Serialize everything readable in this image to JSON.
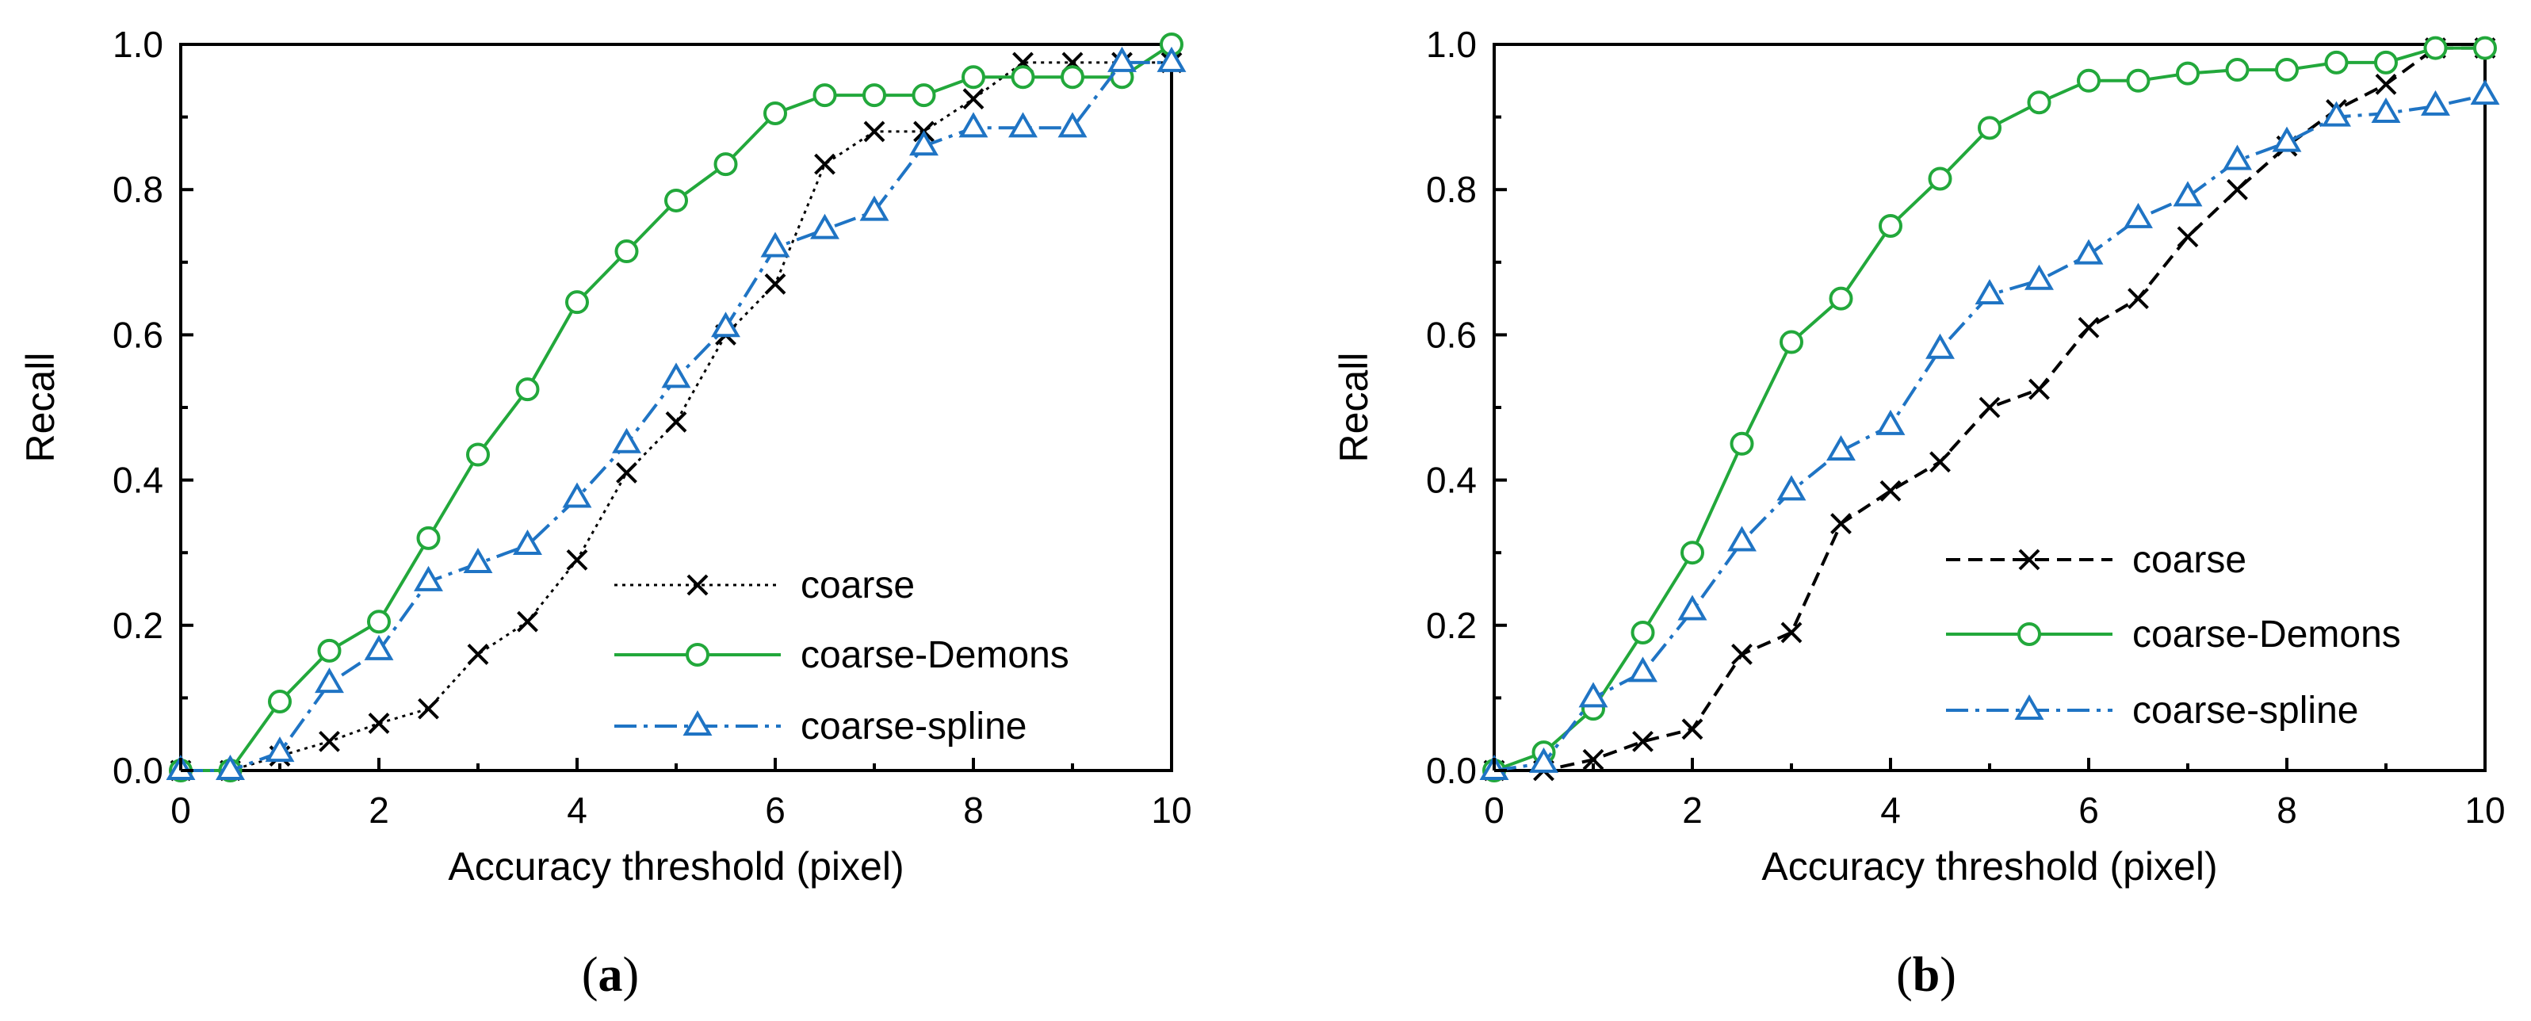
{
  "chart_data": [
    {
      "type": "line",
      "panel_label": "a",
      "xlabel": "Accuracy threshold (pixel)",
      "ylabel": "Recall",
      "xlim": [
        0,
        10
      ],
      "ylim": [
        0,
        1
      ],
      "xticks": [
        "0",
        "2",
        "4",
        "6",
        "8",
        "10"
      ],
      "yticks": [
        "0.0",
        "0.2",
        "0.4",
        "0.6",
        "0.8",
        "1.0"
      ],
      "legend_position": "bottom-right",
      "grid": false,
      "x": [
        0,
        0.5,
        1,
        1.5,
        2,
        2.5,
        3,
        3.5,
        4,
        4.5,
        5,
        5.5,
        6,
        6.5,
        7,
        7.5,
        8,
        8.5,
        9,
        9.5,
        10
      ],
      "series": [
        {
          "name": "coarse",
          "color": "#000000",
          "marker": "x",
          "line_style": "dotted",
          "values": [
            0,
            0,
            0.02,
            0.04,
            0.065,
            0.085,
            0.16,
            0.205,
            0.29,
            0.41,
            0.48,
            0.6,
            0.67,
            0.835,
            0.88,
            0.88,
            0.925,
            0.975,
            0.975,
            0.975,
            0.975
          ]
        },
        {
          "name": "coarse-Demons",
          "color": "#22a83b",
          "marker": "circle",
          "line_style": "solid",
          "values": [
            0,
            0,
            0.095,
            0.165,
            0.205,
            0.32,
            0.435,
            0.525,
            0.645,
            0.715,
            0.785,
            0.835,
            0.905,
            0.93,
            0.93,
            0.93,
            0.955,
            0.955,
            0.955,
            0.955,
            1.0
          ]
        },
        {
          "name": "coarse-spline",
          "color": "#1f74c4",
          "marker": "triangle",
          "line_style": "dashdot",
          "values": [
            0,
            0,
            0.025,
            0.12,
            0.165,
            0.26,
            0.285,
            0.31,
            0.375,
            0.45,
            0.54,
            0.61,
            0.72,
            0.745,
            0.77,
            0.86,
            0.885,
            0.885,
            0.885,
            0.975,
            0.975
          ]
        }
      ]
    },
    {
      "type": "line",
      "panel_label": "b",
      "xlabel": "Accuracy threshold (pixel)",
      "ylabel": "Recall",
      "xlim": [
        0,
        10
      ],
      "ylim": [
        0,
        1
      ],
      "xticks": [
        "0",
        "2",
        "4",
        "6",
        "8",
        "10"
      ],
      "yticks": [
        "0.0",
        "0.2",
        "0.4",
        "0.6",
        "0.8",
        "1.0"
      ],
      "legend_position": "bottom-right",
      "grid": false,
      "x": [
        0,
        0.5,
        1,
        1.5,
        2,
        2.5,
        3,
        3.5,
        4,
        4.5,
        5,
        5.5,
        6,
        6.5,
        7,
        7.5,
        8,
        8.5,
        9,
        9.5,
        10
      ],
      "series": [
        {
          "name": "coarse",
          "color": "#000000",
          "marker": "x",
          "line_style": "dashed",
          "values": [
            0,
            0,
            0.015,
            0.04,
            0.057,
            0.16,
            0.19,
            0.34,
            0.385,
            0.425,
            0.5,
            0.525,
            0.61,
            0.65,
            0.735,
            0.8,
            0.86,
            0.91,
            0.945,
            0.995,
            0.995
          ]
        },
        {
          "name": "coarse-Demons",
          "color": "#22a83b",
          "marker": "circle",
          "line_style": "solid",
          "values": [
            0,
            0.025,
            0.085,
            0.19,
            0.3,
            0.45,
            0.59,
            0.65,
            0.75,
            0.815,
            0.885,
            0.92,
            0.95,
            0.95,
            0.96,
            0.965,
            0.965,
            0.975,
            0.975,
            0.995,
            0.995
          ]
        },
        {
          "name": "coarse-spline",
          "color": "#1f74c4",
          "marker": "triangle",
          "line_style": "dashdot",
          "values": [
            0,
            0.01,
            0.1,
            0.135,
            0.22,
            0.315,
            0.385,
            0.44,
            0.475,
            0.58,
            0.655,
            0.675,
            0.71,
            0.76,
            0.79,
            0.84,
            0.865,
            0.9,
            0.905,
            0.915,
            0.93
          ]
        }
      ]
    }
  ]
}
